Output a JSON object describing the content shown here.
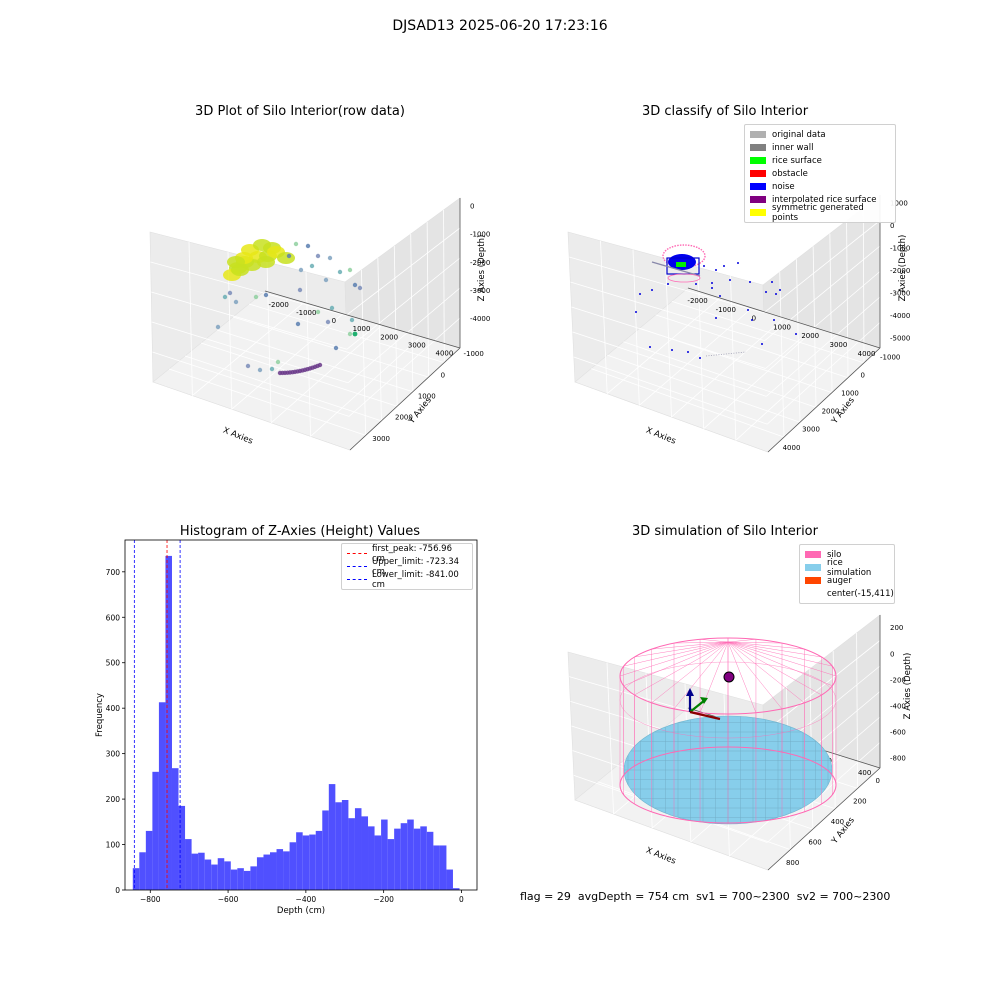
{
  "suptitle": "DJSAD13 2025-06-20 17:23:16",
  "status": {
    "flag": "flag = 29",
    "avg": "avgDepth = 754 cm",
    "sv1": "sv1 = 700~2300",
    "sv2": "sv2 = 700~2300"
  },
  "colors": {
    "hist_bar": "#5050ff",
    "peak_line": "#ff0000",
    "limit_line": "#0000ff",
    "silo": "#ff69b4",
    "rice": "#87ceeb",
    "auger": "#ff4500"
  },
  "panels": {
    "raw3d": {
      "title": "3D Plot of Silo Interior(row data)",
      "xlabel": "X Axies",
      "ylabel": "Y Axies",
      "zlabel": "Z Axies (Depth)",
      "xticks": [
        "-2000",
        "-1000",
        "0",
        "1000",
        "2000",
        "3000",
        "4000"
      ],
      "yticks": [
        "-1000",
        "0",
        "1000",
        "2000",
        "3000"
      ],
      "zticks": [
        "0",
        "-1000",
        "-2000",
        "-3000",
        "-4000"
      ]
    },
    "classify3d": {
      "title": "3D classify of Silo Interior",
      "xlabel": "X Axies",
      "ylabel": "Y Axies",
      "zlabel": "Z Axies (Depth)",
      "xticks": [
        "-2000",
        "-1000",
        "0",
        "1000",
        "2000",
        "3000",
        "4000"
      ],
      "yticks": [
        "-1000",
        "0",
        "1000",
        "2000",
        "3000",
        "4000"
      ],
      "zticks": [
        "1000",
        "0",
        "-1000",
        "-2000",
        "-3000",
        "-4000",
        "-5000"
      ],
      "legend": [
        {
          "label": "original data",
          "color": "#b0b0b0"
        },
        {
          "label": "inner wall",
          "color": "#808080"
        },
        {
          "label": "rice surface",
          "color": "#00ff00"
        },
        {
          "label": "obstacle",
          "color": "#ff0000"
        },
        {
          "label": "noise",
          "color": "#0000ff"
        },
        {
          "label": "interpolated rice surface",
          "color": "#800080"
        },
        {
          "label": "symmetric generated points",
          "color": "#ffff00"
        }
      ]
    },
    "simulation3d": {
      "title": "3D simulation of Silo Interior",
      "xlabel": "X Axies",
      "ylabel": "Y Axies",
      "zlabel": "Z Axies (Depth)",
      "xticks": [
        "-400",
        "-200",
        "0",
        "200",
        "400"
      ],
      "yticks": [
        "0",
        "200",
        "400",
        "600",
        "800"
      ],
      "zticks": [
        "200",
        "0",
        "-200",
        "-400",
        "-600",
        "-800"
      ],
      "legend": [
        {
          "label": "silo",
          "color": "#ff69b4"
        },
        {
          "label": "rice simulation",
          "color": "#87ceeb"
        },
        {
          "label": "auger",
          "color": "#ff4500"
        },
        {
          "label": "center(-15,411)",
          "color": ""
        }
      ]
    }
  },
  "chart_data": {
    "type": "bar",
    "title": "Histogram of Z-Axies (Height) Values",
    "xlabel": "Depth (cm)",
    "ylabel": "Frequency",
    "xlim": [
      -865,
      40
    ],
    "ylim": [
      0,
      770
    ],
    "xticks": [
      -800,
      -600,
      -400,
      -200,
      0
    ],
    "yticks": [
      0,
      100,
      200,
      300,
      400,
      500,
      600,
      700
    ],
    "bin_start": -845,
    "bin_width": 16.8,
    "values": [
      48,
      83,
      130,
      260,
      413,
      735,
      268,
      185,
      112,
      80,
      82,
      67,
      56,
      70,
      63,
      45,
      48,
      42,
      52,
      72,
      78,
      83,
      90,
      85,
      105,
      127,
      120,
      122,
      130,
      175,
      233,
      193,
      198,
      158,
      180,
      162,
      140,
      120,
      155,
      112,
      135,
      147,
      155,
      135,
      140,
      128,
      98,
      98,
      45,
      4
    ],
    "vlines": [
      {
        "label": "first_peak: -756.96 cm",
        "x": -756.96,
        "color": "#ff0000"
      },
      {
        "label": "Upper_limit: -723.34 cm",
        "x": -723.34,
        "color": "#0000ff"
      },
      {
        "label": "Lower_limit: -841.00 cm",
        "x": -841.0,
        "color": "#0000ff"
      }
    ]
  }
}
